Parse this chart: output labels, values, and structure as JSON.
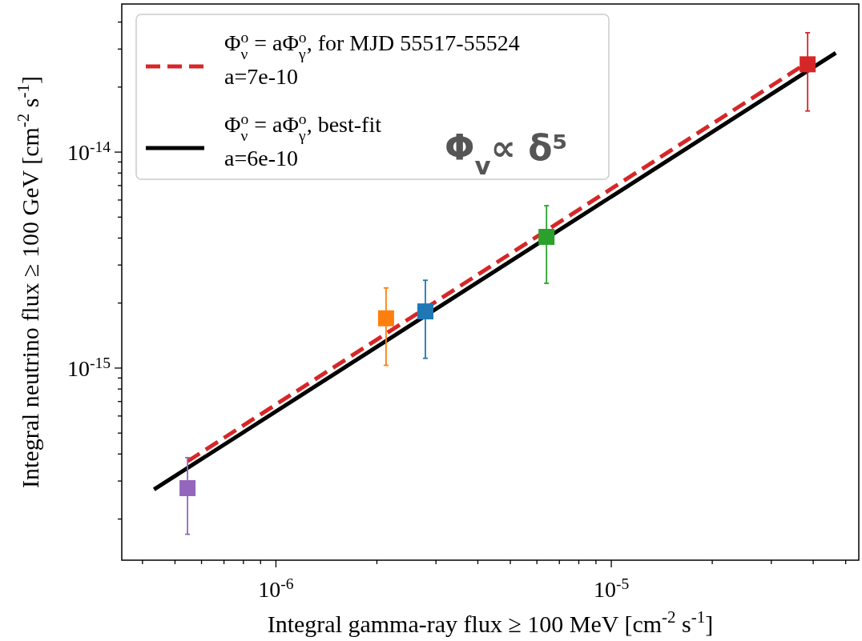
{
  "chart_data": {
    "type": "scatter",
    "xlabel": "Integral gamma-ray flux ≥ 100 MeV [cm$^{-2}$ s$^{-1}$]",
    "ylabel": "Integral neutrino flux ≥ 100 GeV [cm$^{-2}$ s$^{-1}$]",
    "log": "xy",
    "grid": false,
    "legend": "top left",
    "marker": "square",
    "xlim": [
      3.47e-07,
      5.47e-05
    ],
    "ylim": [
      1.29e-16,
      4.85e-14
    ],
    "xticks": [
      {
        "value": 4e-07,
        "label": null
      },
      {
        "value": 5e-07,
        "label": null
      },
      {
        "value": 6e-07,
        "label": null
      },
      {
        "value": 7e-07,
        "label": null
      },
      {
        "value": 8e-07,
        "label": null
      },
      {
        "value": 9e-07,
        "label": null
      },
      {
        "value": 1e-06,
        "label": "10$^{-6}$"
      },
      {
        "value": 2e-06,
        "label": null
      },
      {
        "value": 3e-06,
        "label": null
      },
      {
        "value": 4e-06,
        "label": null
      },
      {
        "value": 5e-06,
        "label": null
      },
      {
        "value": 6e-06,
        "label": null
      },
      {
        "value": 7e-06,
        "label": null
      },
      {
        "value": 8e-06,
        "label": null
      },
      {
        "value": 9e-06,
        "label": null
      },
      {
        "value": 1e-05,
        "label": "10$^{-5}$"
      },
      {
        "value": 2e-05,
        "label": null
      },
      {
        "value": 3e-05,
        "label": null
      },
      {
        "value": 4e-05,
        "label": null
      },
      {
        "value": 5e-05,
        "label": null
      }
    ],
    "yticks": [
      {
        "value": 2e-16,
        "label": null
      },
      {
        "value": 3e-16,
        "label": null
      },
      {
        "value": 4e-16,
        "label": null
      },
      {
        "value": 5e-16,
        "label": null
      },
      {
        "value": 6e-16,
        "label": null
      },
      {
        "value": 7e-16,
        "label": null
      },
      {
        "value": 8e-16,
        "label": null
      },
      {
        "value": 9e-16,
        "label": null
      },
      {
        "value": 1e-15,
        "label": "10$^{-15}$"
      },
      {
        "value": 2e-15,
        "label": null
      },
      {
        "value": 3e-15,
        "label": null
      },
      {
        "value": 4e-15,
        "label": null
      },
      {
        "value": 5e-15,
        "label": null
      },
      {
        "value": 6e-15,
        "label": null
      },
      {
        "value": 7e-15,
        "label": null
      },
      {
        "value": 8e-15,
        "label": null
      },
      {
        "value": 9e-15,
        "label": null
      },
      {
        "value": 1e-14,
        "label": "10$^{-14}$"
      },
      {
        "value": 2e-14,
        "label": null
      },
      {
        "value": 3e-14,
        "label": null
      },
      {
        "value": 4e-14,
        "label": null
      }
    ],
    "annotations": [
      "Φ$_{v}$∝ δ⁵"
    ],
    "series": [
      {
        "type": "line",
        "name": "Φ$_{ν}$$^{o}$ = aΦ$_{γ}$$^{o}$, for MJD 55517-55524\na=7e-10",
        "color": "#d62728",
        "line_style": "dashed",
        "marker": "none",
        "x": [
          5.45e-07,
          3.85e-05
        ],
        "values": [
          3.7e-16,
          2.6e-14
        ]
      },
      {
        "type": "line",
        "name": "Φ$_{ν}$$^{o}$ = aΦ$_{γ}$$^{o}$, best-fit\na=6e-10",
        "color": "#000000",
        "line_style": "solid",
        "marker": "none",
        "x": [
          4.33e-07,
          4.67e-05
        ],
        "values": [
          2.74e-16,
          2.88e-14
        ]
      },
      {
        "color": "#9467bd",
        "x": [
          5.45e-07
        ],
        "values": [
          2.78e-16
        ],
        "errors": [
          [
            1.7e-16,
            3.85e-16
          ]
        ]
      },
      {
        "color": "#ff7f0e",
        "x": [
          2.13e-06
        ],
        "values": [
          1.7e-15
        ],
        "errors": [
          [
            1.03e-15,
            2.35e-15
          ]
        ]
      },
      {
        "color": "#1f77b4",
        "x": [
          2.79e-06
        ],
        "values": [
          1.83e-15
        ],
        "errors": [
          [
            1.11e-15,
            2.55e-15
          ]
        ]
      },
      {
        "color": "#2ca02c",
        "x": [
          6.41e-06
        ],
        "values": [
          4.05e-15
        ],
        "errors": [
          [
            2.47e-15,
            5.65e-15
          ]
        ]
      },
      {
        "color": "#d62728",
        "x": [
          3.85e-05
        ],
        "values": [
          2.55e-14
        ],
        "errors": [
          [
            1.55e-14,
            3.57e-14
          ]
        ]
      }
    ]
  }
}
